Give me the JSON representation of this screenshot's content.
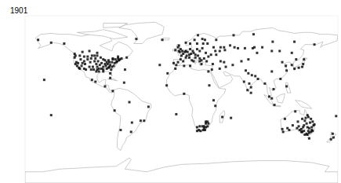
{
  "chart_data": {
    "type": "scatter",
    "title": "1901",
    "x": [
      -122,
      -123,
      -122,
      -120,
      -118,
      -117,
      -121,
      -119,
      -116,
      -112,
      -112,
      -108,
      -105,
      -106,
      -112,
      -110,
      -104,
      -100,
      -97,
      -96,
      -98,
      -97,
      -97,
      -98,
      -95,
      -93,
      -90,
      -88,
      -86,
      -84,
      -83,
      -85,
      -87,
      -90,
      -90,
      -90,
      -86,
      -84,
      -82,
      -81,
      -80,
      -78,
      -77,
      -75,
      -74,
      -72,
      -71,
      -69,
      -73,
      -76,
      -80,
      -79,
      -83,
      -92,
      -94,
      -100,
      -102,
      -101,
      -104,
      -115,
      -114,
      -117,
      -111,
      -108,
      -103,
      -99,
      -95,
      -92,
      -88,
      -82,
      -114,
      -106,
      -97,
      -79,
      -73,
      -63,
      -123,
      -135,
      -99,
      -103,
      -88,
      -79,
      -82,
      -66,
      -47,
      -43,
      -58,
      -70,
      -77,
      -38,
      -60,
      -57,
      -150,
      -165,
      -52,
      -22,
      -25,
      -16,
      -158,
      -65,
      57,
      -6,
      -9,
      -4,
      -6,
      2,
      -1,
      2,
      5,
      0,
      4,
      5,
      7,
      9,
      11,
      13,
      10,
      14,
      16,
      19,
      21,
      18,
      24,
      25,
      30,
      37,
      28,
      31,
      34,
      40,
      44,
      50,
      12,
      9,
      14,
      16,
      21,
      23,
      26,
      23,
      29,
      18,
      10,
      5,
      15,
      24,
      19,
      27,
      -3,
      -1,
      -4,
      -7,
      -2,
      1,
      -3,
      6,
      21,
      40,
      39,
      45,
      49,
      56,
      61,
      65,
      73,
      82,
      84,
      93,
      104,
      113,
      127,
      132,
      60,
      83,
      105,
      130,
      153,
      87,
      77,
      69,
      59,
      49,
      45,
      44,
      51,
      35,
      36,
      72,
      77,
      80,
      88,
      76,
      81,
      85,
      74,
      78,
      80,
      116,
      121,
      114,
      104,
      120,
      139,
      135,
      141,
      130,
      140,
      127,
      121,
      107,
      104,
      101,
      106,
      96,
      31,
      10,
      3,
      -7,
      -17,
      32,
      37,
      39,
      47,
      3,
      18,
      20,
      22,
      25,
      27,
      28,
      26,
      28,
      30,
      31,
      24,
      21,
      30,
      28,
      26,
      18,
      151,
      150,
      149,
      147,
      145,
      144,
      142,
      141,
      139,
      138,
      136,
      138,
      147,
      145,
      150,
      152,
      153,
      151,
      149,
      146,
      145,
      142,
      144,
      141,
      139,
      134,
      131,
      119,
      116,
      117,
      122,
      124,
      128,
      133,
      147,
      143,
      148,
      146,
      140,
      135,
      175,
      172,
      174,
      178,
      -150
    ],
    "values": [
      47,
      45,
      38,
      36,
      34,
      33,
      40,
      39,
      43,
      41,
      46,
      46,
      40,
      35,
      33,
      32,
      44,
      47,
      47,
      41,
      38,
      35,
      32,
      30,
      30,
      45,
      43,
      42,
      40,
      42,
      40,
      38,
      36,
      35,
      32,
      30,
      33,
      34,
      28,
      32,
      35,
      36,
      39,
      40,
      41,
      42,
      43,
      44,
      44,
      43,
      40,
      43,
      35,
      39,
      37,
      41,
      35,
      32,
      32,
      36,
      39,
      47,
      38,
      43,
      47,
      44,
      33,
      33,
      38,
      37,
      51,
      52,
      50,
      44,
      46,
      45,
      49,
      60,
      19,
      21,
      14,
      9,
      23,
      18,
      -23,
      -23,
      -35,
      -33,
      -12,
      -8,
      -3,
      -25,
      61,
      64,
      65,
      64,
      37,
      28,
      21,
      32,
      -20,
      -16,
      39,
      40,
      37,
      41,
      43,
      49,
      45,
      47,
      51,
      52,
      51,
      48,
      49,
      52,
      54,
      50,
      48,
      47,
      52,
      54,
      55,
      60,
      60,
      56,
      50,
      46,
      48,
      48,
      52,
      53,
      42,
      45,
      41,
      45,
      44,
      42,
      44,
      38,
      41,
      60,
      60,
      61,
      64,
      65,
      69,
      64,
      52,
      54,
      56,
      53,
      51,
      52,
      58,
      47,
      41,
      64,
      52,
      56,
      56,
      58,
      56,
      55,
      55,
      55,
      56,
      56,
      52,
      52,
      50,
      43,
      69,
      70,
      62,
      62,
      59,
      50,
      43,
      41,
      37,
      40,
      41,
      33,
      35,
      32,
      38,
      19,
      28,
      13,
      22,
      10,
      26,
      25,
      31,
      17,
      7,
      40,
      31,
      22,
      30,
      36,
      35,
      34,
      43,
      33,
      38,
      37,
      14,
      -6,
      1,
      3,
      11,
      17,
      30,
      36,
      36,
      33,
      15,
      15,
      -1,
      -7,
      -19,
      6,
      -34,
      -33,
      -34,
      -33,
      -33,
      -30,
      -29,
      -26,
      -29,
      -26,
      -29,
      -29,
      -24,
      -24,
      -31,
      -30,
      -34,
      -33,
      -35,
      -36,
      -38,
      -37,
      -38,
      -34,
      -35,
      -35,
      -33,
      -32,
      -31,
      -30,
      -30,
      -28,
      -27,
      -24,
      -21,
      -19,
      -17,
      -23,
      -26,
      -28,
      -21,
      -24,
      -13,
      -21,
      -32,
      -35,
      -31,
      -33,
      -28,
      -31,
      -42,
      -20,
      -25,
      -34,
      -30,
      -29,
      -41,
      -43,
      -37,
      -18,
      -17
    ],
    "xlim": [
      -180,
      180
    ],
    "ylim": [
      -90,
      90
    ],
    "tick_labels": false,
    "grid": false,
    "color": "#000000",
    "marker": "square"
  }
}
